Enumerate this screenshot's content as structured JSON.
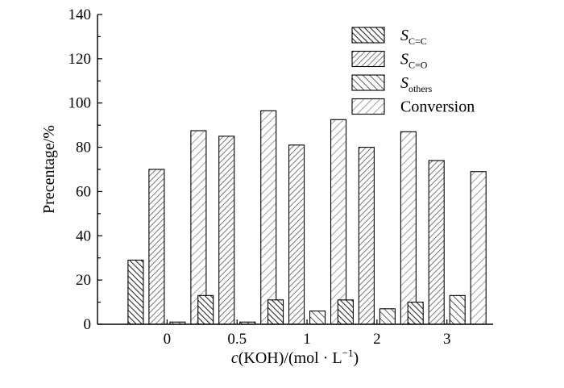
{
  "chart_data": {
    "type": "bar",
    "categories": [
      "0",
      "0.5",
      "1",
      "2",
      "3"
    ],
    "series": [
      {
        "name": "S",
        "sub": "C=C",
        "pattern": "back-dense",
        "values": [
          29,
          13,
          11,
          11,
          10
        ]
      },
      {
        "name": "S",
        "sub": "C=O",
        "pattern": "fwd-dense",
        "values": [
          70,
          85,
          81,
          80,
          74
        ]
      },
      {
        "name": "S",
        "sub": "others",
        "pattern": "back-sparse",
        "values": [
          1,
          1,
          6,
          7,
          13
        ]
      },
      {
        "name": "Conversion",
        "sub": "",
        "pattern": "fwd-sparse",
        "values": [
          87.5,
          96.5,
          92.5,
          87,
          69
        ]
      }
    ],
    "ylim": [
      0,
      140
    ],
    "yticks": [
      "0",
      "20",
      "40",
      "60",
      "80",
      "100",
      "120",
      "140"
    ],
    "ylabel": "Precentage/%",
    "xlabel": {
      "italic": "c",
      "text": "(KOH)/(mol · L",
      "sup": "−1",
      "close": ")"
    },
    "legend_position": "top-right",
    "grid": false,
    "colors": {
      "fill_dense": "#3a3a3a",
      "fill_fwd": "#777777",
      "fill_light": "#888888",
      "axis": "#000000"
    }
  }
}
